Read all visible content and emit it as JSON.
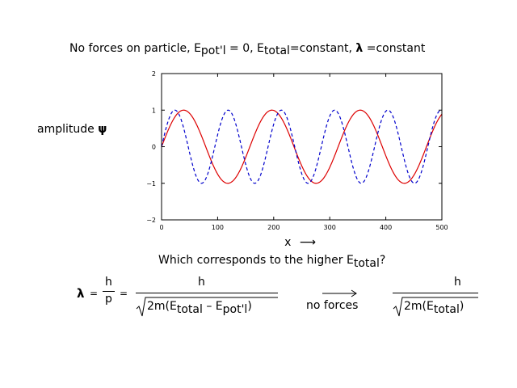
{
  "title_parts": {
    "prefix": "No forces on particle, E",
    "sub1": "pot'l",
    "mid1": " = 0, E",
    "sub2": "total",
    "mid2": "=constant, ",
    "lambda": "λ",
    "suffix": " =constant"
  },
  "ylabel_text": "amplitude ",
  "ylabel_symbol": "ψ",
  "xlabel_text": "x",
  "xlabel_arrow": "⟶",
  "question": {
    "prefix": "Which corresponds to the higher E",
    "sub": "total",
    "suffix": "?"
  },
  "equation": {
    "lambda": "λ",
    "eq1": "=",
    "h": "h",
    "p": "p",
    "eq2": "=",
    "num1": "h",
    "den1_prefix": "2m(E",
    "den1_sub1": "total",
    "den1_mid": " – E",
    "den1_sub2": "pot'l",
    "den1_suffix": ")",
    "arrow_label": "no forces",
    "num2": "h",
    "den2_prefix": "2m(E",
    "den2_sub": "total",
    "den2_suffix": ")"
  },
  "chart_data": {
    "type": "line",
    "xlim": [
      0,
      500
    ],
    "ylim": [
      -2,
      2
    ],
    "xticks": [
      0,
      100,
      200,
      300,
      400,
      500
    ],
    "yticks": [
      -2,
      -1,
      0,
      1,
      2
    ],
    "series": [
      {
        "color": "#dd0000",
        "dash": false,
        "amplitude": 1,
        "wavelength": 157.5,
        "phase_x0": 0
      },
      {
        "color": "#0000cc",
        "dash": true,
        "amplitude": 1,
        "wavelength": 95,
        "phase_x0": 0
      }
    ]
  }
}
